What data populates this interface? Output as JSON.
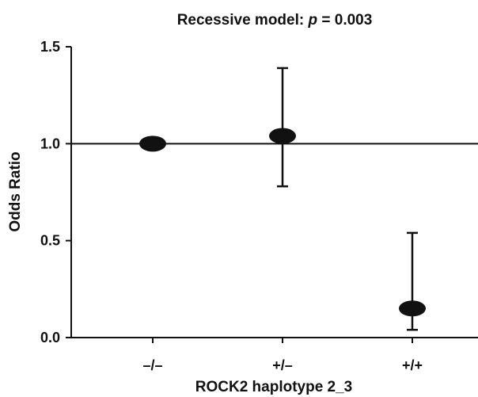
{
  "chart_data": {
    "type": "scatter",
    "title_prefix": "Recessive model: ",
    "title_p": "p",
    "title_suffix": " = 0.003",
    "xlabel": "ROCK2 haplotype 2_3",
    "ylabel": "Odds Ratio",
    "categories": [
      "–/–",
      "+/–",
      "+/+"
    ],
    "values": [
      1.0,
      1.04,
      0.15
    ],
    "ci_lower": [
      null,
      0.78,
      0.04
    ],
    "ci_upper": [
      null,
      1.39,
      0.54
    ],
    "reference_line": 1.0,
    "ylim": [
      0,
      1.5
    ],
    "yticks": [
      0.0,
      0.5,
      1.0,
      1.5
    ],
    "ytick_labels": [
      "0.0",
      "0.5",
      "1.0",
      "1.5"
    ],
    "grid": false,
    "colors": {
      "marker": "#111111",
      "axis": "#111111",
      "text": "#111111"
    }
  }
}
